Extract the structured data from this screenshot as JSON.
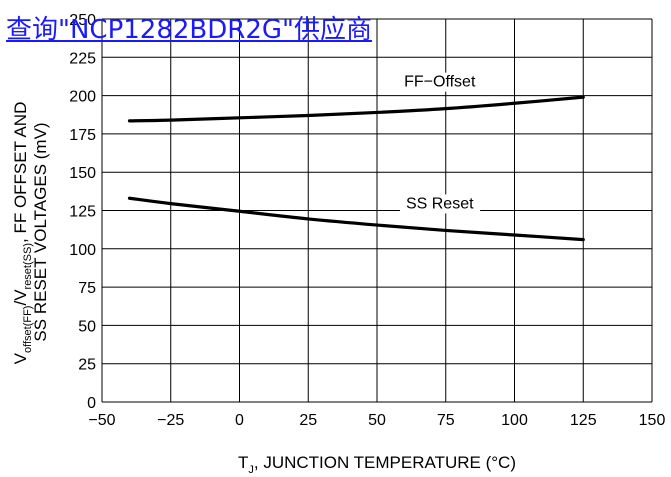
{
  "overlay_link": {
    "text": "查询\"NCP1282BDR2G\"供应商",
    "color": "#1a1aff"
  },
  "chart_data": {
    "type": "line",
    "xlabel": "T_J, JUNCTION TEMPERATURE (°C)",
    "ylabel_line1": "V_offset(FF)/V_reset(SS), FF OFFSET AND",
    "ylabel_line2": "SS RESET VOLTAGES (mV)",
    "xlim": [
      -50,
      150
    ],
    "ylim": [
      0,
      250
    ],
    "xticks": [
      -50,
      -25,
      0,
      25,
      50,
      75,
      100,
      125,
      150
    ],
    "xtick_labels": [
      "−50",
      "−25",
      "0",
      "25",
      "50",
      "75",
      "100",
      "125",
      "150"
    ],
    "yticks": [
      0,
      25,
      50,
      75,
      100,
      125,
      150,
      175,
      200,
      225,
      250
    ],
    "ytick_labels": [
      "0",
      "25",
      "50",
      "75",
      "100",
      "125",
      "150",
      "175",
      "200",
      "225",
      "250"
    ],
    "grid": true,
    "series": [
      {
        "name": "FF−Offset",
        "x": [
          -40,
          -25,
          0,
          25,
          50,
          75,
          100,
          125
        ],
        "y": [
          183.5,
          184,
          185.5,
          187,
          189,
          191.5,
          195,
          199
        ]
      },
      {
        "name": "SS Reset",
        "x": [
          -40,
          -25,
          0,
          25,
          50,
          75,
          100,
          125
        ],
        "y": [
          133,
          129.5,
          124.5,
          119.5,
          115.5,
          112,
          109,
          106
        ]
      }
    ]
  }
}
